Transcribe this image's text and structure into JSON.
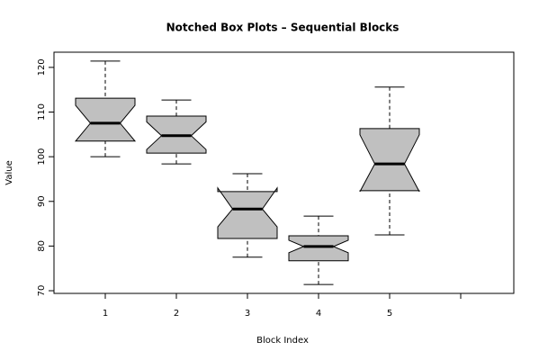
{
  "chart_data": {
    "type": "boxplot",
    "title": "Notched Box Plots – Sequential Blocks",
    "x_label": "Block Index",
    "y_label": "Value",
    "categories": [
      "1",
      "2",
      "3",
      "4",
      "5",
      null
    ],
    "whisker_high": [
      121.4,
      112.7,
      96.2,
      86.7,
      115.6,
      null
    ],
    "q3": [
      113.1,
      109.1,
      92.2,
      82.3,
      106.3,
      null
    ],
    "notch_high": [
      111.5,
      107.8,
      93.0,
      81.3,
      104.9,
      null
    ],
    "median": [
      107.5,
      104.7,
      88.3,
      79.9,
      98.4,
      null
    ],
    "notch_low": [
      103.5,
      101.6,
      84.3,
      78.5,
      92.2,
      null
    ],
    "q1": [
      103.5,
      100.8,
      81.7,
      76.7,
      92.4,
      null
    ],
    "whisker_low": [
      100.0,
      98.4,
      77.5,
      71.4,
      82.5,
      null
    ],
    "color": "#c0c0c0",
    "ylim": [
      69.4,
      123.4
    ],
    "yticks": [
      70,
      80,
      90,
      100,
      110,
      120
    ]
  }
}
